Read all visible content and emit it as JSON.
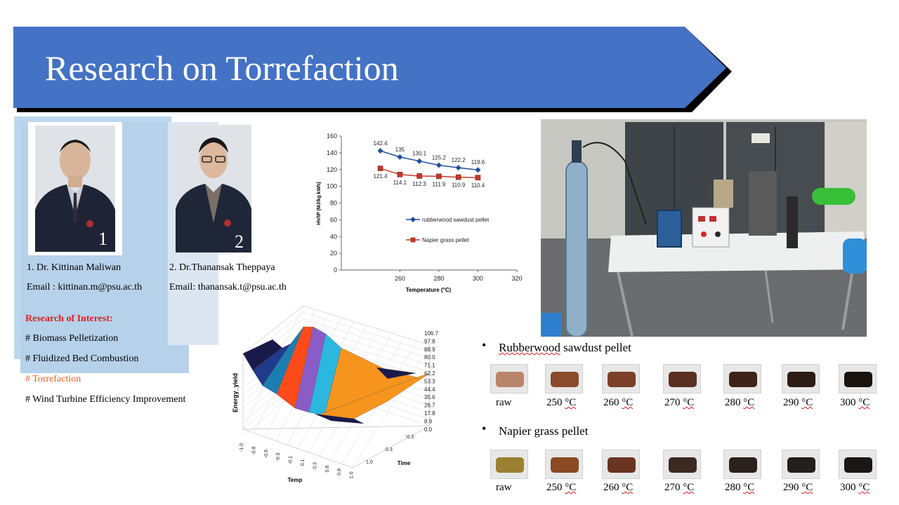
{
  "slide": {
    "title": "Research on Torrefaction"
  },
  "people": [
    {
      "number": "1",
      "name": "1. Dr. Kittinan Maliwan",
      "email": "Email : kittinan.m@psu.ac.th"
    },
    {
      "number": "2",
      "name": "2. Dr.Thanansak Theppaya",
      "email": "Email: thanansak.t@psu.ac.th"
    }
  ],
  "research": {
    "heading": "Research of Interest:",
    "items": [
      "# Biomass Pelletization",
      "# Fluidized Bed Combustion",
      "# Torrefaction",
      "# Wind Turbine Efficiency Improvement"
    ]
  },
  "colors": {
    "banner": "#4472c4",
    "panel": "#bdd7ee",
    "series1": "#1f4e9c",
    "series2": "#c0392b",
    "highlight": "#e2612c",
    "heading": "#e02020"
  },
  "chart_data": [
    {
      "type": "line",
      "title": "",
      "xlabel": "Temperature (°C)",
      "ylabel": "HV/IP (MJ/kg kWh)",
      "xlim": [
        230,
        320
      ],
      "ylim": [
        0,
        160
      ],
      "x_ticks": [
        260,
        280,
        300,
        320
      ],
      "y_ticks": [
        0,
        20,
        40,
        60,
        80,
        100,
        120,
        140,
        160
      ],
      "legend_position": "right",
      "series": [
        {
          "name": "rubberwood sawdust pellet",
          "x": [
            250,
            260,
            270,
            280,
            290,
            300
          ],
          "values": [
            142.4,
            135,
            130.1,
            125.2,
            122.2,
            119.6
          ],
          "labels": [
            "142.4",
            "135",
            "130.1",
            "125.2",
            "122.2",
            "119.6"
          ],
          "marker": "diamond"
        },
        {
          "name": "Napier grass pellet",
          "x": [
            250,
            260,
            270,
            280,
            290,
            300
          ],
          "values": [
            121.4,
            114.1,
            112.3,
            111.9,
            110.9,
            110.4
          ],
          "labels": [
            "121.4",
            "114.1",
            "112.3",
            "111.9",
            "110.9",
            "110.4"
          ],
          "marker": "square"
        }
      ]
    },
    {
      "type": "surface",
      "zlabel": "Energy_yield",
      "xlabel": "Temp",
      "ylabel": "Time",
      "x_ticks": [
        "-1.0",
        "-0.8",
        "-0.6",
        "-0.3",
        "-0.1",
        "0.1",
        "0.3",
        "0.6",
        "0.8",
        "1.0"
      ],
      "y_ticks": [
        "-0.3",
        "0.3",
        "1.0"
      ],
      "z_ticks": [
        "106.7",
        "97.8",
        "88.9",
        "80.0",
        "71.1",
        "62.2",
        "53.3",
        "44.4",
        "35.6",
        "26.7",
        "17.8",
        "8.9",
        "0.0"
      ],
      "band_colors": [
        "#1a1a4a",
        "#1f3a8a",
        "#1a7fb0",
        "#ff4a1a",
        "#8a5cc8",
        "#2ab8e0",
        "#f7941d"
      ]
    }
  ],
  "samples": {
    "rubberwood": {
      "title": "Rubberwood sawdust pellet",
      "title_underlined": "Rubberwood",
      "title_rest": " sawdust pellet",
      "colors": [
        "#b9856a",
        "#8a4a2c",
        "#7a4028",
        "#5a3020",
        "#3e2418",
        "#2c1c14",
        "#1a1410"
      ]
    },
    "napier": {
      "title": "Napier grass pellet",
      "colors": [
        "#9a8030",
        "#8a4a24",
        "#6a3422",
        "#3a2a22",
        "#2a201c",
        "#22201e",
        "#1a1614"
      ]
    },
    "labels": [
      "raw",
      "250 °C",
      "260 °C",
      "270 °C",
      "280 °C",
      "290 °C",
      "300 °C"
    ],
    "num_labels": [
      "250 ",
      "260 ",
      "270 ",
      "280 ",
      "290 ",
      "300 "
    ],
    "unit": "°C"
  }
}
